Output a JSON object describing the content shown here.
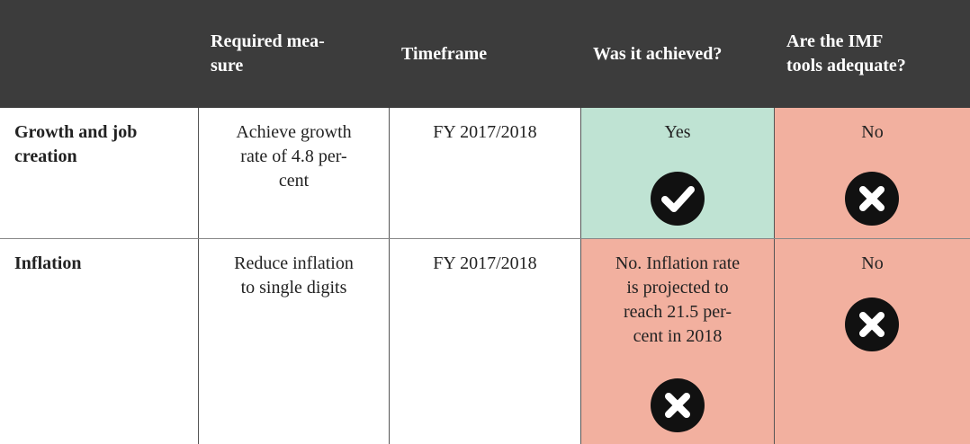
{
  "table": {
    "header": [
      "",
      "Required mea-\nsure",
      "Timeframe",
      "Was it achieved?",
      "Are the IMF\ntools adequate?"
    ],
    "rows": [
      [
        "Growth and job\ncreation",
        "Achieve growth\nrate of 4.8 per-\ncent",
        "FY 2017/2018",
        "Yes",
        "No"
      ],
      [
        "Inflation",
        "Reduce inflation\nto single digits",
        "FY 2017/2018",
        "No. Inflation rate\nis projected to\nreach 21.5 per-\ncent in 2018",
        "No"
      ]
    ]
  }
}
